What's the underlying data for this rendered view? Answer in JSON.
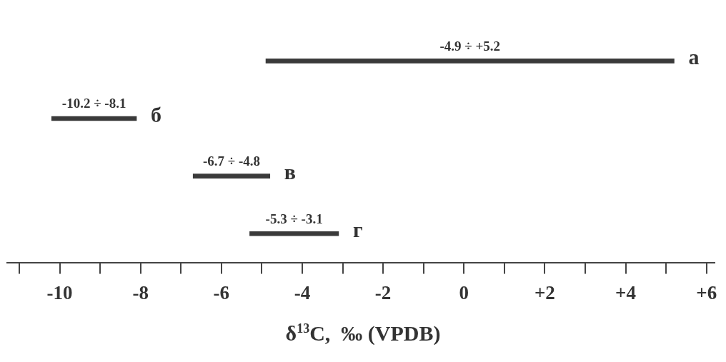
{
  "chart_data": {
    "type": "bar",
    "orientation": "horizontal",
    "xlabel": "δ$^{13}$C,  ‰ (VPDB)",
    "categories": [
      "а",
      "б",
      "в",
      "г"
    ],
    "base": [
      -4.9,
      -10.2,
      -6.7,
      -5.3
    ],
    "values": [
      10.1,
      2.1,
      1.9,
      2.2
    ],
    "annotations": [
      {
        "text": "-4.9 ÷ +5.2",
        "x": 0.15,
        "y": "а"
      },
      {
        "text": "-10.2 ÷ -8.1",
        "x": -9.15,
        "y": "б"
      },
      {
        "text": "-6.7 ÷ -4.8",
        "x": -5.75,
        "y": "в"
      },
      {
        "text": "-5.3 ÷ -3.1",
        "x": -4.2,
        "y": "г"
      }
    ],
    "color": "#3a3a3a",
    "xlim": [
      -11.3,
      6.2
    ],
    "xticks": [
      {
        "value": -11,
        "label": null
      },
      -10,
      {
        "value": -9,
        "label": null
      },
      -8,
      {
        "value": -7,
        "label": null
      },
      -6,
      {
        "value": -5,
        "label": null
      },
      -4,
      {
        "value": -3,
        "label": null
      },
      -2,
      {
        "value": -1,
        "label": null
      },
      0,
      {
        "value": 1,
        "label": null
      },
      {
        "value": 2,
        "label": "+2"
      },
      {
        "value": 3,
        "label": null
      },
      {
        "value": 4,
        "label": "+4"
      },
      {
        "value": 5,
        "label": null
      },
      {
        "value": 6,
        "label": "+6"
      }
    ],
    "grid": false,
    "legend": false
  }
}
